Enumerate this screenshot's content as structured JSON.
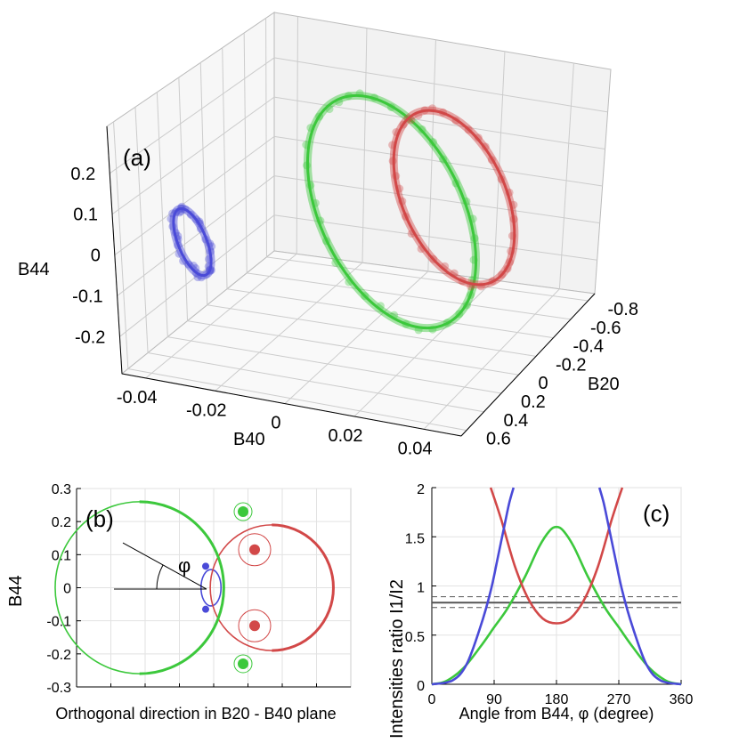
{
  "figure": {
    "panel_a_label": "(a)",
    "panel_b_label": "(b)",
    "panel_c_label": "(c)",
    "phi_symbol": "φ"
  },
  "colors": {
    "blue": "#4a4ad8",
    "green": "#3cc83c",
    "red": "#d24848",
    "gray": "#555555",
    "axis": "#000000",
    "grid": "#cccccc"
  },
  "chart_data": [
    {
      "type": "scatter",
      "panel": "a",
      "title": "",
      "xlabel": "B20",
      "ylabel": "B40",
      "zlabel": "B44",
      "xlim": [
        -0.8,
        0.6
      ],
      "ylim": [
        -0.04,
        0.04
      ],
      "zlim": [
        -0.25,
        0.25
      ],
      "x_ticks": [
        "-0.8",
        "-0.6",
        "-0.4",
        "-0.2",
        "0",
        "0.2",
        "0.4",
        "0.6"
      ],
      "y_ticks": [
        "-0.04",
        "-0.02",
        "0",
        "0.02",
        "0.04"
      ],
      "z_ticks": [
        "0.2",
        "0.1",
        "0",
        "-0.1",
        "-0.2"
      ],
      "grid": true,
      "series": [
        {
          "color": "blue",
          "shape": "ring",
          "approx_center_B20": -0.5,
          "approx_center_B40": -0.04,
          "approx_radius_B44": 0.05
        },
        {
          "color": "green",
          "shape": "ring",
          "approx_center_B20": 0.2,
          "approx_center_B40": 0.02,
          "approx_radius_B44": 0.26
        },
        {
          "color": "red",
          "shape": "ring",
          "approx_center_B20": -0.4,
          "approx_center_B40": 0.03,
          "approx_radius_B44": 0.19
        }
      ]
    },
    {
      "type": "line",
      "panel": "b",
      "title": "",
      "xlabel": "Orthogonal direction in B20 - B40 plane",
      "ylabel": "B44",
      "ylim": [
        -0.3,
        0.3
      ],
      "y_ticks": [
        "0.3",
        "0.2",
        "0.1",
        "0",
        "-0.1",
        "-0.2",
        "-0.3"
      ],
      "grid": true,
      "series": [
        {
          "color": "blue",
          "shape": "circle",
          "radius_B44": 0.055,
          "marker_points_B44": [
            0.065,
            -0.065
          ]
        },
        {
          "color": "red",
          "shape": "circle",
          "radius_B44": 0.19,
          "marker_points_B44": [
            0.115,
            -0.115
          ]
        },
        {
          "color": "green",
          "shape": "circle",
          "radius_B44": 0.26,
          "marker_points_B44": [
            0.23,
            -0.23
          ]
        }
      ]
    },
    {
      "type": "line",
      "panel": "c",
      "title": "",
      "xlabel": "Angle from B44, φ (degree)",
      "ylabel": "Intensities ratio I1/I2",
      "xlim": [
        0,
        360
      ],
      "ylim": [
        0,
        2
      ],
      "x_ticks": [
        "0",
        "90",
        "180",
        "270",
        "360"
      ],
      "y_ticks": [
        "2",
        "1.5",
        "1",
        "0.5",
        "0"
      ],
      "grid": true,
      "reference_lines": {
        "solid": 0.83,
        "dashed": [
          0.78,
          0.89
        ]
      },
      "series": [
        {
          "color": "green",
          "x": [
            0,
            20,
            45,
            70,
            90,
            110,
            135,
            155,
            170,
            180,
            190,
            205,
            225,
            250,
            270,
            290,
            315,
            340,
            360
          ],
          "y": [
            0,
            0.03,
            0.16,
            0.38,
            0.58,
            0.78,
            1.1,
            1.4,
            1.56,
            1.6,
            1.56,
            1.4,
            1.1,
            0.78,
            0.58,
            0.38,
            0.16,
            0.03,
            0
          ]
        },
        {
          "color": "red",
          "x": [
            85,
            100,
            120,
            140,
            160,
            180,
            200,
            220,
            240,
            260,
            275
          ],
          "y": [
            2.0,
            1.68,
            1.2,
            0.86,
            0.67,
            0.62,
            0.67,
            0.86,
            1.2,
            1.68,
            2.0
          ]
        },
        {
          "color": "blue",
          "x": [
            0,
            30,
            50,
            70,
            85,
            95,
            105,
            112,
            118
          ],
          "y": [
            0,
            0.04,
            0.2,
            0.58,
            0.95,
            1.28,
            1.62,
            1.85,
            2.0
          ]
        },
        {
          "color": "blue",
          "x": [
            242,
            248,
            255,
            265,
            275,
            290,
            310,
            330,
            360
          ],
          "y": [
            2.0,
            1.85,
            1.62,
            1.28,
            0.95,
            0.58,
            0.2,
            0.04,
            0
          ]
        }
      ]
    }
  ]
}
